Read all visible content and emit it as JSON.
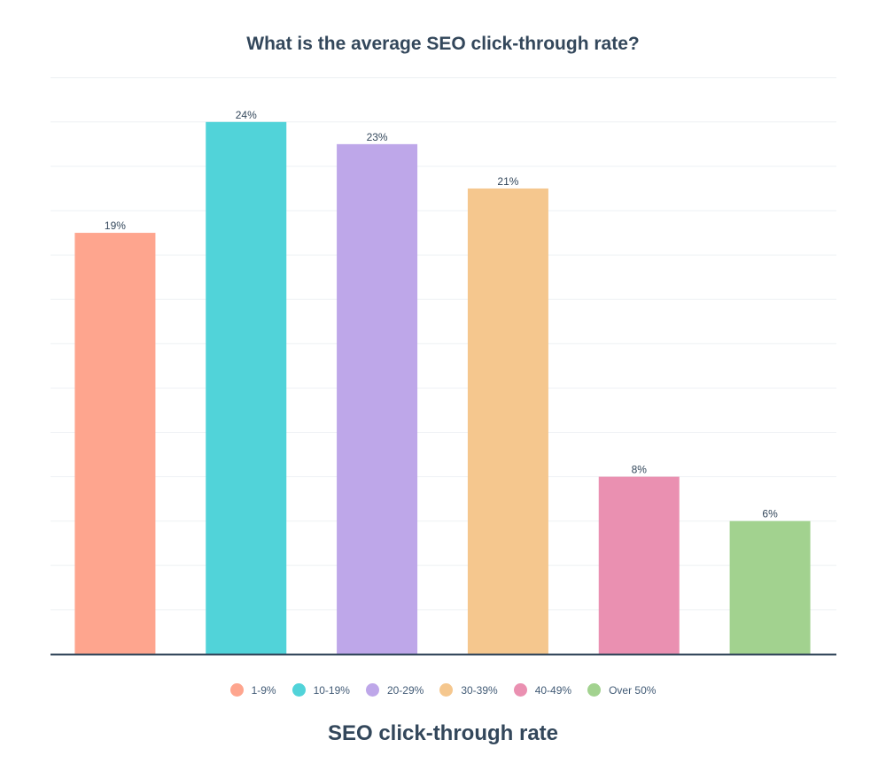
{
  "chart_data": {
    "type": "bar",
    "title": "What is the average SEO click-through rate?",
    "xlabel": "SEO click-through rate",
    "ylabel": "",
    "ylim": [
      0,
      26
    ],
    "grid": true,
    "legend_position": "bottom",
    "categories": [
      "1-9%",
      "10-19%",
      "20-29%",
      "30-39%",
      "40-49%",
      "Over 50%"
    ],
    "values": [
      19,
      24,
      23,
      21,
      8,
      6
    ],
    "data_labels": [
      "19%",
      "24%",
      "23%",
      "21%",
      "8%",
      "6%"
    ],
    "colors": [
      "#fea58e",
      "#51d3d9",
      "#bea7e9",
      "#f5c78e",
      "#ea90b1",
      "#a2d28f"
    ]
  }
}
